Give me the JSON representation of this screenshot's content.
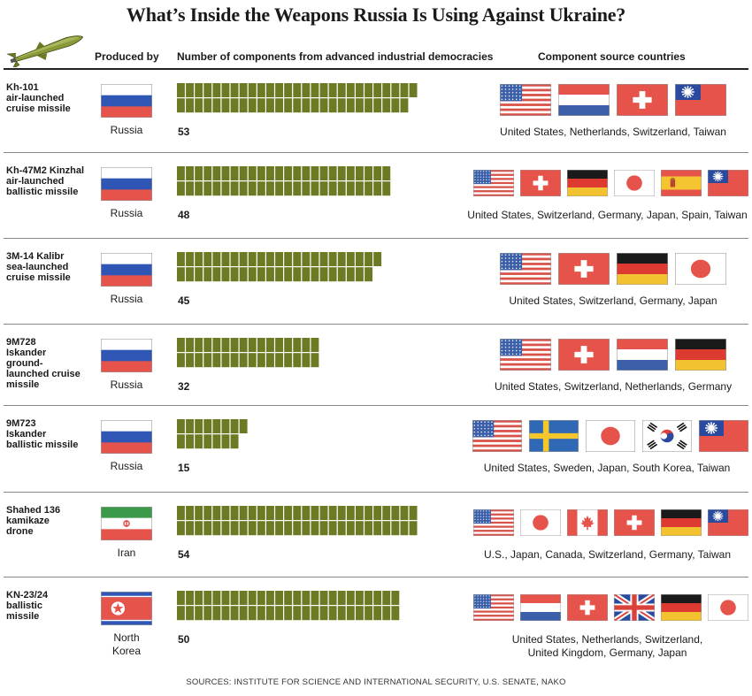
{
  "title": "What’s Inside the Weapons Russia Is Using Against Ukraine?",
  "headers": {
    "produced_by": "Produced by",
    "components": "Number of components from advanced industrial democracies",
    "sources": "Component source countries"
  },
  "colors": {
    "component": "#6b7a23",
    "accent_red": "#e5534b"
  },
  "icons": {
    "header": "missile-icon"
  },
  "chart_data": {
    "type": "bar",
    "title": "What’s Inside the Weapons Russia Is Using Against Ukraine?",
    "xlabel": "Number of components from advanced industrial democracies",
    "categories": [
      "Kh-101 air-launched cruise missile",
      "Kh-47M2 Kinzhal air-launched ballistic missile",
      "3M-14 Kalibr sea-launched cruise missile",
      "9M728 Iskander ground-launched cruise missile",
      "9M723 Iskander ballistic missile",
      "Shahed 136 kamikaze drone",
      "KN-23/24 ballistic missile"
    ],
    "values": [
      53,
      48,
      45,
      32,
      15,
      54,
      50
    ]
  },
  "weapons": [
    {
      "name": [
        "Kh-101",
        "air-launched",
        "cruise missile"
      ],
      "producer": [
        "Russia"
      ],
      "producer_flag": "russia",
      "count": 53,
      "source_flags": [
        "us",
        "netherlands",
        "switzerland",
        "taiwan"
      ],
      "sources_text": [
        "United States, Netherlands, Switzerland, Taiwan"
      ]
    },
    {
      "name": [
        "Kh-47M2 Kinzhal",
        "air-launched",
        "ballistic missile"
      ],
      "producer": [
        "Russia"
      ],
      "producer_flag": "russia",
      "count": 48,
      "source_flags": [
        "us",
        "switzerland",
        "germany",
        "japan",
        "spain",
        "taiwan"
      ],
      "sources_text": [
        "United States, Switzerland, Germany, Japan, Spain, Taiwan"
      ]
    },
    {
      "name": [
        "3M-14 Kalibr",
        "sea-launched",
        "cruise missile"
      ],
      "producer": [
        "Russia"
      ],
      "producer_flag": "russia",
      "count": 45,
      "source_flags": [
        "us",
        "switzerland",
        "germany",
        "japan"
      ],
      "sources_text": [
        "United States, Switzerland, Germany, Japan"
      ]
    },
    {
      "name": [
        "9M728",
        "Iskander",
        "ground-",
        "launched cruise",
        "missile"
      ],
      "producer": [
        "Russia"
      ],
      "producer_flag": "russia",
      "count": 32,
      "source_flags": [
        "us",
        "switzerland",
        "netherlands",
        "germany"
      ],
      "sources_text": [
        "United States, Switzerland, Netherlands, Germany"
      ]
    },
    {
      "name": [
        "9M723",
        "Iskander",
        "ballistic missile"
      ],
      "producer": [
        "Russia"
      ],
      "producer_flag": "russia",
      "count": 15,
      "source_flags": [
        "us",
        "sweden",
        "japan",
        "south_korea",
        "taiwan"
      ],
      "sources_text": [
        "United States, Sweden, Japan, South Korea, Taiwan"
      ]
    },
    {
      "name": [
        "Shahed 136",
        "kamikaze",
        "drone"
      ],
      "producer": [
        "Iran"
      ],
      "producer_flag": "iran",
      "count": 54,
      "source_flags": [
        "us",
        "japan",
        "canada",
        "switzerland",
        "germany",
        "taiwan"
      ],
      "sources_text": [
        "U.S., Japan, Canada, Switzerland, Germany, Taiwan"
      ]
    },
    {
      "name": [
        "KN-23/24",
        "ballistic",
        "missile"
      ],
      "producer": [
        "North",
        "Korea"
      ],
      "producer_flag": "north_korea",
      "count": 50,
      "source_flags": [
        "us",
        "netherlands",
        "switzerland",
        "uk",
        "germany",
        "japan"
      ],
      "sources_text": [
        "United States, Netherlands, Switzerland,",
        "United Kingdom, Germany, Japan"
      ]
    }
  ],
  "footer": "SOURCES: INSTITUTE FOR SCIENCE AND INTERNATIONAL SECURITY, U.S. SENATE, NAKO"
}
